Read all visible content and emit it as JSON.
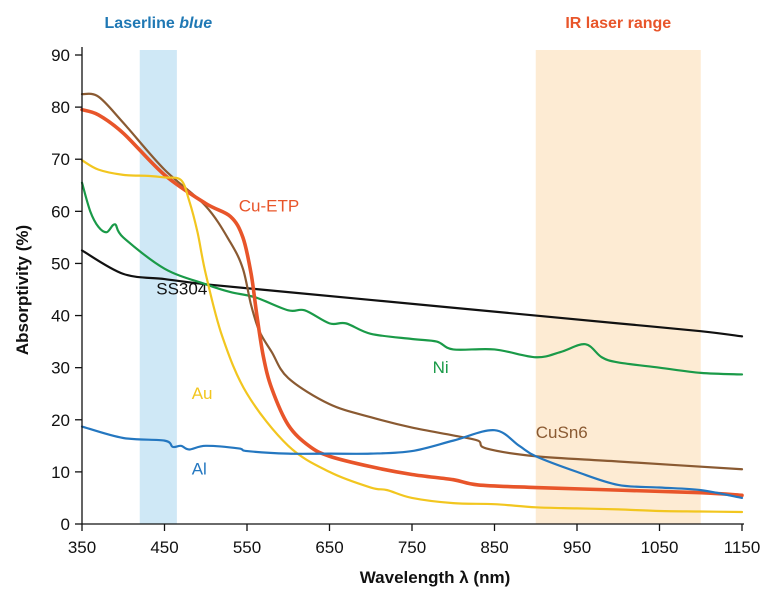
{
  "chart_data": {
    "type": "line",
    "xlabel": "Wavelength λ (nm)",
    "ylabel": "Absorptivity (%)",
    "xlim": [
      350,
      1150
    ],
    "ylim": [
      0,
      90
    ],
    "xticks": [
      350,
      450,
      550,
      650,
      750,
      850,
      950,
      1050,
      1150
    ],
    "yticks": [
      0,
      10,
      20,
      30,
      40,
      50,
      60,
      70,
      80,
      90
    ],
    "grid": false,
    "bands": [
      {
        "label_main": "Laserline ",
        "label_em": "blue",
        "from": 420,
        "to": 465,
        "color": "#cfe8f6",
        "text_color": "#1f78b4"
      },
      {
        "label_main": "IR laser range",
        "label_em": "",
        "from": 900,
        "to": 1100,
        "color": "#fdebd3",
        "text_color": "#e8552a"
      }
    ],
    "series": [
      {
        "name": "SS304",
        "color": "#111111",
        "width": 2.2,
        "label_at": [
          440,
          44
        ],
        "x": [
          350,
          400,
          450,
          500,
          600,
          700,
          800,
          900,
          1000,
          1100,
          1150
        ],
        "y": [
          52.5,
          48,
          47,
          46,
          44.5,
          43,
          41.5,
          40,
          38.5,
          37,
          36
        ]
      },
      {
        "name": "Ni",
        "color": "#1a9a48",
        "width": 2.2,
        "label_at": [
          775,
          29
        ],
        "x": [
          350,
          360,
          370,
          380,
          390,
          400,
          450,
          500,
          530,
          560,
          600,
          620,
          650,
          670,
          700,
          750,
          780,
          800,
          850,
          900,
          930,
          960,
          980,
          1000,
          1050,
          1100,
          1150
        ],
        "y": [
          65.5,
          60,
          57,
          56,
          57.5,
          55,
          49,
          46,
          44.5,
          43.5,
          41,
          41,
          38.5,
          38.5,
          36.5,
          35.5,
          35,
          33.5,
          33.5,
          32,
          33,
          34.5,
          32,
          31,
          30,
          29,
          28.7
        ]
      },
      {
        "name": "CuSn6",
        "color": "#8a5a32",
        "width": 2.2,
        "label_at": [
          900,
          16.5
        ],
        "x": [
          350,
          370,
          400,
          450,
          500,
          530,
          545,
          555,
          565,
          580,
          600,
          650,
          700,
          750,
          800,
          830,
          840,
          900,
          1000,
          1150
        ],
        "y": [
          82.5,
          82,
          77,
          68,
          61,
          54,
          49,
          42,
          37,
          33,
          28,
          23,
          20.5,
          18.5,
          17,
          16,
          14.5,
          13,
          12,
          10.5
        ]
      },
      {
        "name": "Cu-ETP",
        "color": "#e8552a",
        "width": 3.6,
        "label_at": [
          540,
          60
        ],
        "x": [
          350,
          370,
          400,
          450,
          500,
          530,
          545,
          555,
          562,
          570,
          580,
          600,
          625,
          650,
          700,
          750,
          800,
          830,
          900,
          1000,
          1100,
          1150
        ],
        "y": [
          79.5,
          78.5,
          75,
          67,
          61.5,
          59,
          55,
          48,
          40,
          32,
          26,
          19,
          15,
          13,
          11,
          9.5,
          8.5,
          7.5,
          7,
          6.5,
          6,
          5.5
        ]
      },
      {
        "name": "Au",
        "color": "#f2c61f",
        "width": 2.2,
        "label_at": [
          483,
          24
        ],
        "x": [
          350,
          370,
          400,
          430,
          450,
          470,
          480,
          490,
          500,
          520,
          550,
          600,
          650,
          700,
          720,
          750,
          800,
          850,
          900,
          950,
          1000,
          1050,
          1100,
          1150
        ],
        "y": [
          69.8,
          68,
          67,
          66.8,
          66.5,
          66,
          62,
          56,
          48,
          36,
          25,
          15,
          10,
          7,
          6.5,
          5,
          4,
          3.8,
          3.2,
          3,
          2.8,
          2.5,
          2.4,
          2.3
        ]
      },
      {
        "name": "Al",
        "color": "#2477c0",
        "width": 2.2,
        "label_at": [
          483,
          9.5
        ],
        "x": [
          350,
          400,
          450,
          460,
          470,
          480,
          500,
          540,
          550,
          600,
          650,
          700,
          750,
          800,
          850,
          880,
          900,
          950,
          1000,
          1050,
          1100,
          1150
        ],
        "y": [
          18.7,
          16.5,
          16,
          14.8,
          15,
          14.3,
          15,
          14.5,
          14,
          13.5,
          13.5,
          13.5,
          14,
          16,
          18,
          15,
          13,
          10,
          7.5,
          7,
          6.5,
          5
        ]
      }
    ]
  }
}
